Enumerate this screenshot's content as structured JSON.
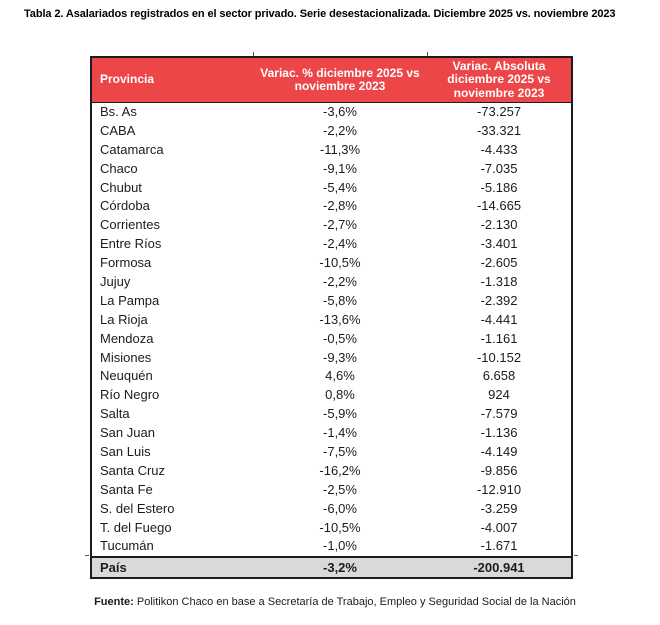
{
  "title": "Tabla 2. Asalariados registrados en el sector privado. Serie desestacionalizada. Diciembre 2025 vs. noviembre 2023",
  "colors": {
    "header_bg": "#ED4648",
    "header_text": "#FFFFFF",
    "total_row_bg": "#D9D9D9",
    "border": "#1C1C1C",
    "body_text": "#1C1C1C"
  },
  "chart_data": {
    "type": "table",
    "title": "Tabla 2. Asalariados registrados en el sector privado. Serie desestacionalizada. Diciembre 2025 vs. noviembre 2023",
    "columns": [
      "Provincia",
      "Variac. % diciembre 2025 vs noviembre 2023",
      "Variac. Absoluta diciembre 2025 vs noviembre 2023"
    ],
    "rows": [
      [
        "Bs. As",
        "-3,6%",
        "-73.257"
      ],
      [
        "CABA",
        "-2,2%",
        "-33.321"
      ],
      [
        "Catamarca",
        "-11,3%",
        "-4.433"
      ],
      [
        "Chaco",
        "-9,1%",
        "-7.035"
      ],
      [
        "Chubut",
        "-5,4%",
        "-5.186"
      ],
      [
        "Córdoba",
        "-2,8%",
        "-14.665"
      ],
      [
        "Corrientes",
        "-2,7%",
        "-2.130"
      ],
      [
        "Entre Ríos",
        "-2,4%",
        "-3.401"
      ],
      [
        "Formosa",
        "-10,5%",
        "-2.605"
      ],
      [
        "Jujuy",
        "-2,2%",
        "-1.318"
      ],
      [
        "La Pampa",
        "-5,8%",
        "-2.392"
      ],
      [
        "La Rioja",
        "-13,6%",
        "-4.441"
      ],
      [
        "Mendoza",
        "-0,5%",
        "-1.161"
      ],
      [
        "Misiones",
        "-9,3%",
        "-10.152"
      ],
      [
        "Neuquén",
        "4,6%",
        "6.658"
      ],
      [
        "Río Negro",
        "0,8%",
        "924"
      ],
      [
        "Salta",
        "-5,9%",
        "-7.579"
      ],
      [
        "San Juan",
        "-1,4%",
        "-1.136"
      ],
      [
        "San Luis",
        "-7,5%",
        "-4.149"
      ],
      [
        "Santa Cruz",
        "-16,2%",
        "-9.856"
      ],
      [
        "Santa Fe",
        "-2,5%",
        "-12.910"
      ],
      [
        "S. del Estero",
        "-6,0%",
        "-3.259"
      ],
      [
        "T. del Fuego",
        "-10,5%",
        "-4.007"
      ],
      [
        "Tucumán",
        "-1,0%",
        "-1.671"
      ]
    ],
    "total_row": [
      "País",
      "-3,2%",
      "-200.941"
    ]
  },
  "footer": {
    "source_label": "Fuente:",
    "source_text": " Politikon Chaco en base a Secretaría de Trabajo, Empleo y Seguridad Social de la Nación"
  }
}
